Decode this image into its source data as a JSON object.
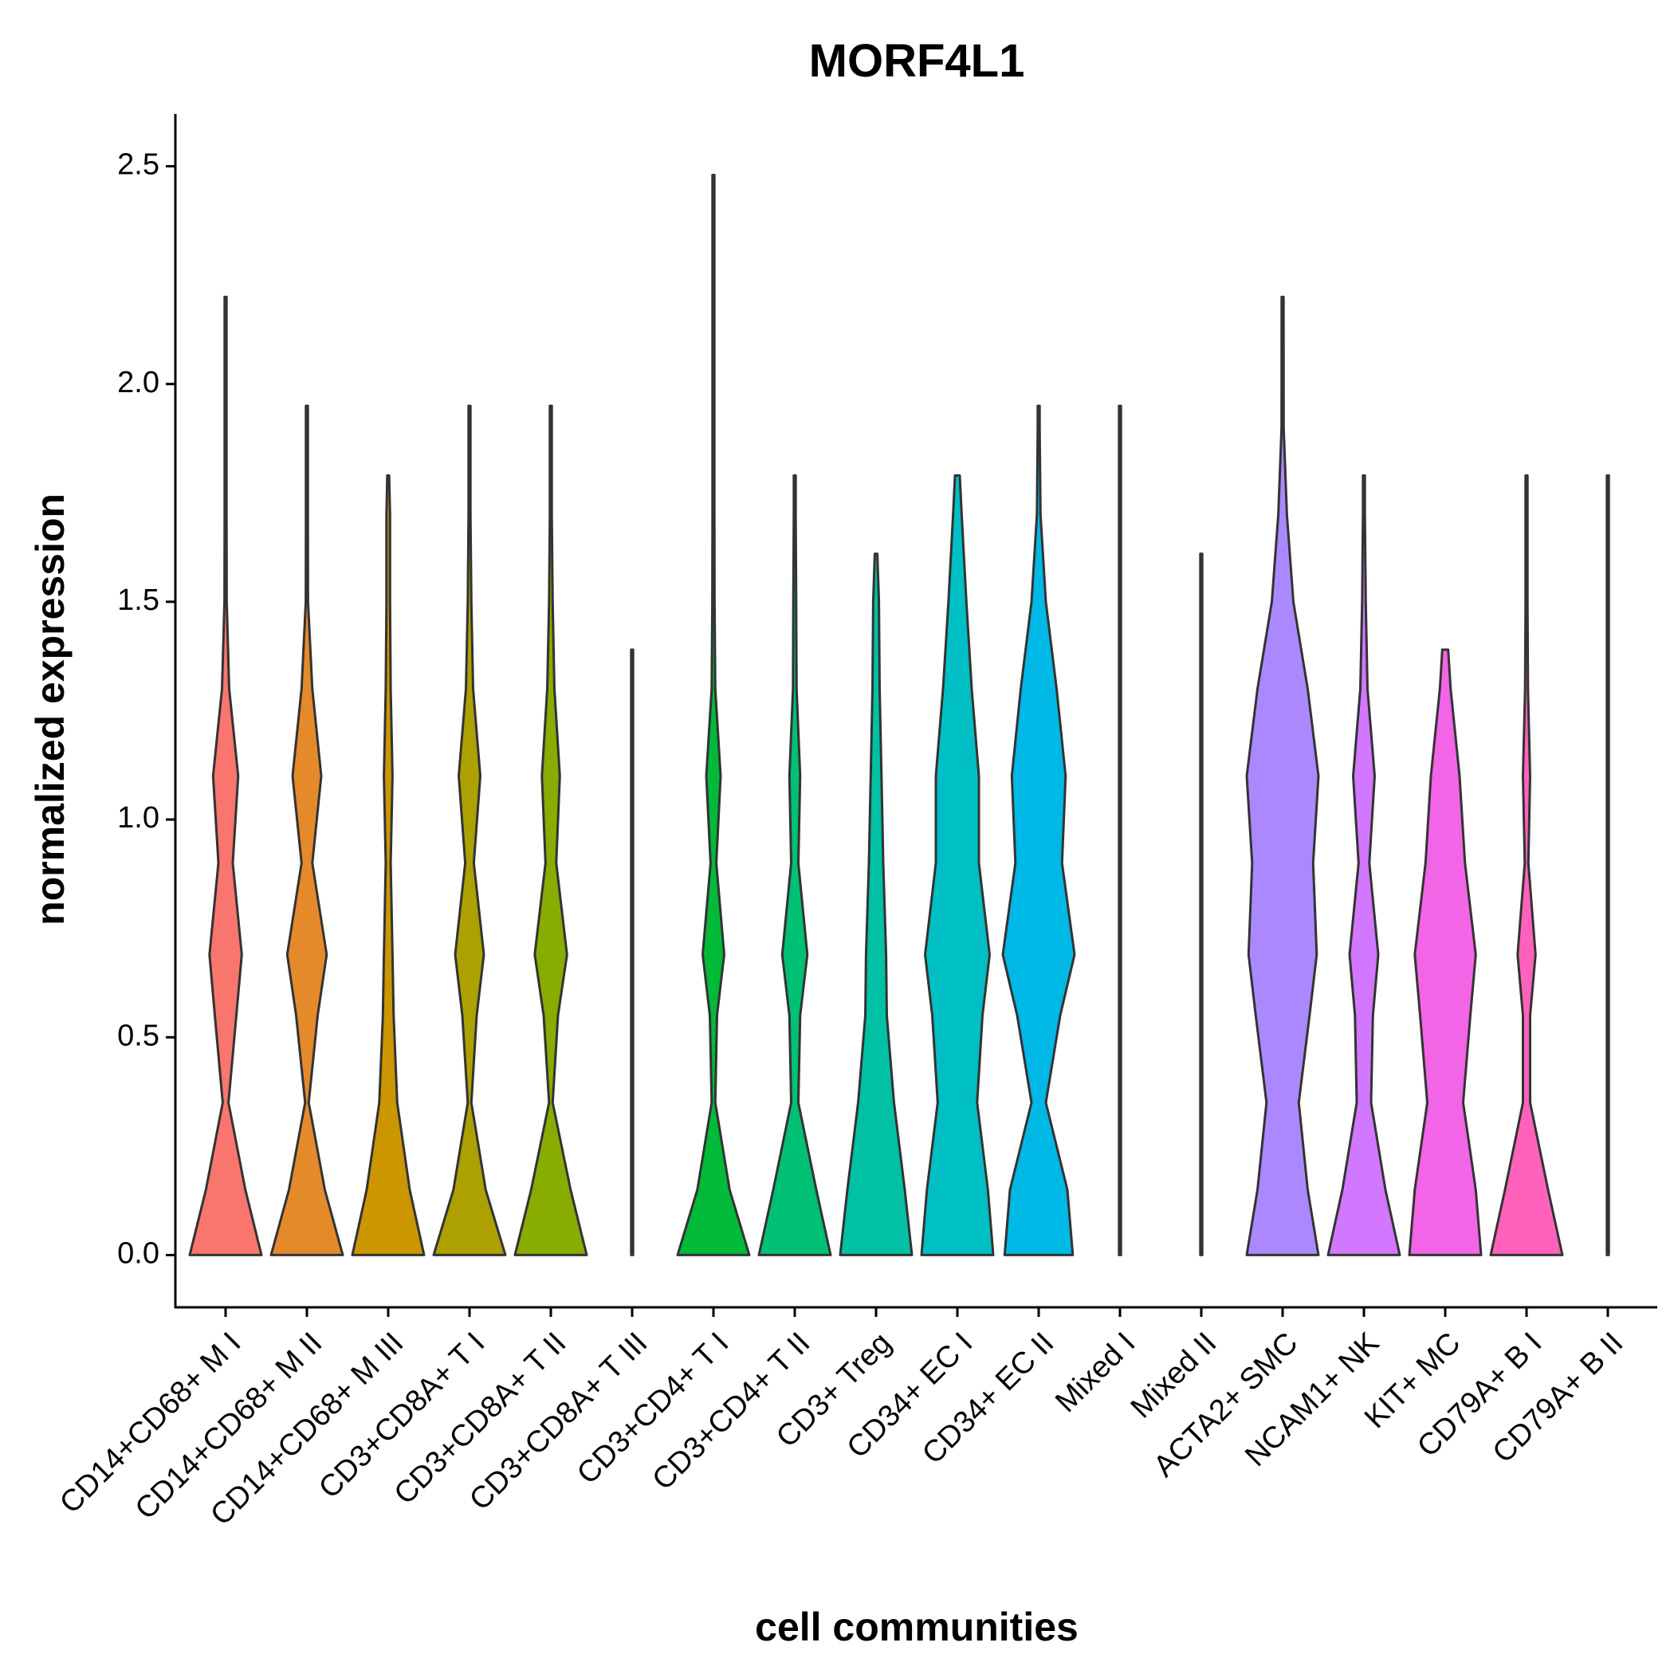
{
  "chart_data": {
    "type": "violin",
    "title": "MORF4L1",
    "x_label": "cell communities",
    "y_label": "normalized expression",
    "ylim": [
      -0.12,
      2.62
    ],
    "yticks": [
      {
        "value": 0,
        "label": "0.0"
      },
      0.5,
      {
        "value": 1,
        "label": "1.0"
      },
      1.5,
      {
        "value": 2,
        "label": "2.0"
      },
      2.5
    ],
    "density_y": [
      0,
      0.15,
      0.35,
      0.55,
      0.69,
      0.9,
      1.1,
      1.3,
      1.5,
      1.7,
      1.9,
      2.2,
      2.5
    ],
    "categories": [
      "CD14+CD68+ M I",
      "CD14+CD68+ M II",
      "CD14+CD68+ M III",
      "CD3+CD8A+ T I",
      "CD3+CD8A+ T II",
      "CD3+CD8A+ T III",
      "CD3+CD4+ T I",
      "CD3+CD4+ T II",
      "CD3+ Treg",
      "CD34+ EC I",
      "CD34+ EC II",
      "Mixed I",
      "Mixed II",
      "ACTA2+ SMC",
      "NCAM1+ NK",
      "KIT+ MC",
      "CD79A+ B I",
      "CD79A+ B II"
    ],
    "colors": [
      "#F8766D",
      "#E58A2B",
      "#CC9600",
      "#ACA100",
      "#88AC00",
      "#3CB600",
      "#00BA38",
      "#00C074",
      "#00C1A3",
      "#00BFC4",
      "#00B8E5",
      "#00ABFD",
      "#7F96FF",
      "#AC88FF",
      "#D277FF",
      "#F265E7",
      "#FF62BC",
      "#FF6A98"
    ],
    "max": [
      2.2,
      1.95,
      1.79,
      1.95,
      1.95,
      1.39,
      2.48,
      1.79,
      1.61,
      1.79,
      1.95,
      1.95,
      1.61,
      2.2,
      1.79,
      1.39,
      1.79,
      1.79
    ],
    "widths": [
      [
        1.0,
        0.55,
        0.08,
        0.3,
        0.45,
        0.2,
        0.35,
        0.1,
        0.03,
        0.02,
        0.01,
        0,
        0
      ],
      [
        1.0,
        0.5,
        0.05,
        0.3,
        0.55,
        0.15,
        0.4,
        0.15,
        0.03,
        0.02,
        0.01,
        0,
        0
      ],
      [
        1.0,
        0.6,
        0.25,
        0.15,
        0.12,
        0.07,
        0.12,
        0.07,
        0.05,
        0.05,
        0,
        0,
        0
      ],
      [
        1.0,
        0.45,
        0.05,
        0.2,
        0.4,
        0.12,
        0.3,
        0.1,
        0.05,
        0.02,
        0.01,
        0,
        0
      ],
      [
        1.0,
        0.55,
        0.05,
        0.2,
        0.45,
        0.15,
        0.25,
        0.1,
        0.05,
        0.02,
        0.01,
        0,
        0
      ],
      [
        0.02,
        0.01,
        0.01,
        0.01,
        0.02,
        0.01,
        0.01,
        0.01,
        0,
        0,
        0,
        0,
        0
      ],
      [
        1.0,
        0.45,
        0.05,
        0.1,
        0.3,
        0.08,
        0.2,
        0.05,
        0.03,
        0.02,
        0.01,
        0.01,
        0
      ],
      [
        1.0,
        0.6,
        0.1,
        0.15,
        0.35,
        0.1,
        0.15,
        0.05,
        0.04,
        0.02,
        0,
        0,
        0
      ],
      [
        1.0,
        0.8,
        0.5,
        0.3,
        0.28,
        0.2,
        0.15,
        0.1,
        0.08,
        0,
        0,
        0,
        0
      ],
      [
        1.0,
        0.85,
        0.55,
        0.7,
        0.9,
        0.6,
        0.6,
        0.4,
        0.25,
        0.12,
        0,
        0,
        0
      ],
      [
        0.95,
        0.8,
        0.2,
        0.6,
        1.0,
        0.65,
        0.75,
        0.5,
        0.2,
        0.05,
        0.01,
        0,
        0
      ],
      [
        0.02,
        0.01,
        0.01,
        0.01,
        0.01,
        0.01,
        0.01,
        0.01,
        0.01,
        0.01,
        0.01,
        0,
        0
      ],
      [
        0.02,
        0.01,
        0.01,
        0.01,
        0.01,
        0.01,
        0.01,
        0.01,
        0.01,
        0,
        0,
        0,
        0
      ],
      [
        1.0,
        0.7,
        0.45,
        0.75,
        0.95,
        0.85,
        1.0,
        0.7,
        0.3,
        0.12,
        0.03,
        0,
        0
      ],
      [
        1.0,
        0.6,
        0.2,
        0.25,
        0.4,
        0.15,
        0.3,
        0.1,
        0.05,
        0.02,
        0,
        0,
        0
      ],
      [
        1.0,
        0.85,
        0.5,
        0.7,
        0.85,
        0.55,
        0.4,
        0.15,
        0,
        0,
        0,
        0,
        0
      ],
      [
        1.0,
        0.6,
        0.1,
        0.1,
        0.25,
        0.05,
        0.1,
        0.04,
        0.02,
        0.01,
        0,
        0,
        0
      ],
      [
        0.02,
        0.01,
        0.01,
        0.01,
        0.01,
        0.01,
        0.01,
        0.01,
        0.01,
        0.01,
        0,
        0,
        0
      ]
    ]
  }
}
